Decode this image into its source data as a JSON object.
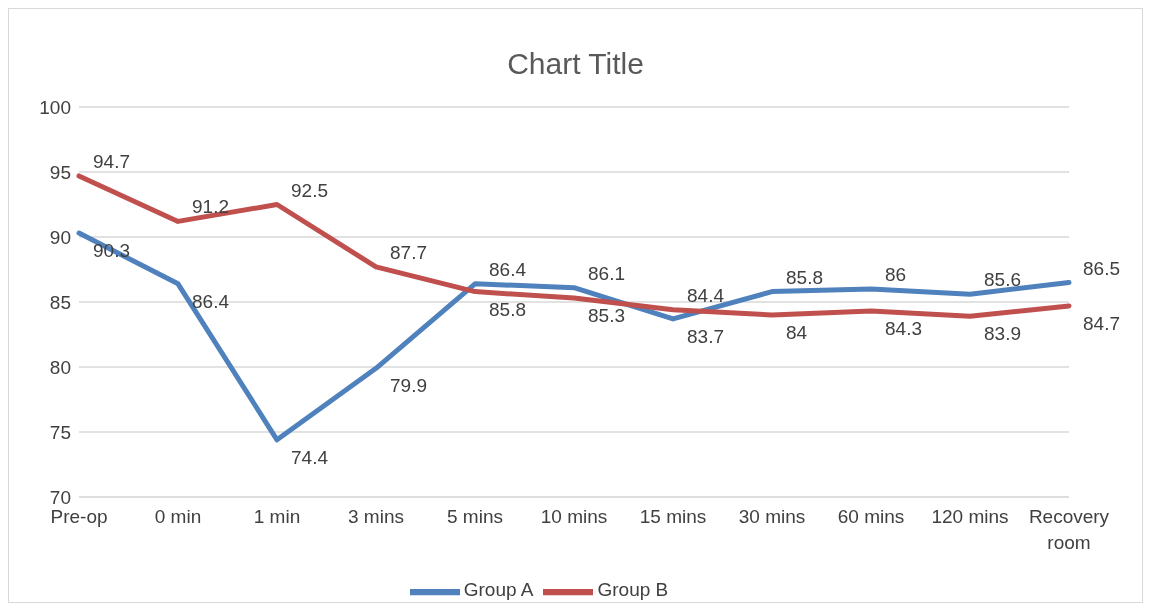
{
  "chart_data": {
    "type": "line",
    "title": "Chart Title",
    "categories": [
      "Pre-op",
      "0 min",
      "1 min",
      "3 mins",
      "5 mins",
      "10 mins",
      "15 mins",
      "30 mins",
      "60 mins",
      "120 mins",
      "Recovery room"
    ],
    "series": [
      {
        "name": "Group A",
        "color": "#4f81bd",
        "values": [
          90.3,
          86.4,
          74.4,
          79.9,
          86.4,
          86.1,
          83.7,
          85.8,
          86,
          85.6,
          86.5
        ]
      },
      {
        "name": "Group B",
        "color": "#c0504d",
        "values": [
          94.7,
          91.2,
          92.5,
          87.7,
          85.8,
          85.3,
          84.4,
          84,
          84.3,
          83.9,
          84.7
        ]
      }
    ],
    "ylim": [
      70,
      100
    ],
    "yticks": [
      70,
      75,
      80,
      85,
      90,
      95,
      100
    ],
    "grid": "y",
    "legend": "bottom",
    "data_labels": true,
    "marker": "none",
    "line_style": "solid"
  }
}
